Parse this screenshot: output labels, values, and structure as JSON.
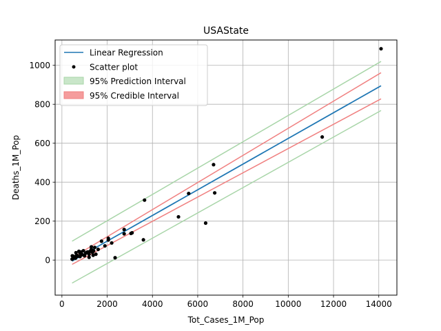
{
  "chart_data": {
    "type": "scatter",
    "title": "USAState",
    "xlabel": "Tot_Cases_1M_Pop",
    "ylabel": "Deaths_1M_Pop",
    "xlim": [
      -300,
      14800
    ],
    "ylim": [
      -180,
      1130
    ],
    "xticks": [
      0,
      2000,
      4000,
      6000,
      8000,
      10000,
      12000,
      14000
    ],
    "yticks": [
      0,
      200,
      400,
      600,
      800,
      1000
    ],
    "grid": true,
    "legend_position": "top-left",
    "legend": {
      "regression": "Linear Regression",
      "scatter": "Scatter plot",
      "prediction": "95% Prediction Interval",
      "credible": "95% Credible Interval"
    },
    "colors": {
      "regression": "#1f77b4",
      "scatter": "#000000",
      "prediction": "#a8d5a8",
      "credible": "#f08080"
    },
    "regression_line": {
      "x": [
        450,
        14100
      ],
      "y": [
        -5,
        895
      ]
    },
    "prediction_upper": {
      "x": [
        450,
        14100
      ],
      "y": [
        97,
        1020
      ]
    },
    "prediction_lower": {
      "x": [
        450,
        14100
      ],
      "y": [
        -118,
        768
      ]
    },
    "credible_upper": {
      "x": [
        450,
        14100
      ],
      "y": [
        12,
        962
      ]
    },
    "credible_lower": {
      "x": [
        450,
        14100
      ],
      "y": [
        -22,
        828
      ]
    },
    "points": [
      [
        14100,
        1085
      ],
      [
        11500,
        632
      ],
      [
        6700,
        490
      ],
      [
        6750,
        345
      ],
      [
        5600,
        342
      ],
      [
        6350,
        190
      ],
      [
        5150,
        222
      ],
      [
        3650,
        308
      ],
      [
        3600,
        104
      ],
      [
        2350,
        12
      ],
      [
        3100,
        140
      ],
      [
        3050,
        137
      ],
      [
        2750,
        157
      ],
      [
        2750,
        135
      ],
      [
        2200,
        88
      ],
      [
        2050,
        112
      ],
      [
        2050,
        103
      ],
      [
        1900,
        73
      ],
      [
        1750,
        97
      ],
      [
        1450,
        65
      ],
      [
        1400,
        48
      ],
      [
        1350,
        40
      ],
      [
        1300,
        68
      ],
      [
        1300,
        55
      ],
      [
        1250,
        45
      ],
      [
        1200,
        30
      ],
      [
        1200,
        14
      ],
      [
        1150,
        42
      ],
      [
        1100,
        40
      ],
      [
        1050,
        35
      ],
      [
        1000,
        22
      ],
      [
        950,
        48
      ],
      [
        900,
        28
      ],
      [
        850,
        42
      ],
      [
        800,
        35
      ],
      [
        800,
        18
      ],
      [
        750,
        45
      ],
      [
        700,
        20
      ],
      [
        650,
        25
      ],
      [
        620,
        38
      ],
      [
        600,
        10
      ],
      [
        550,
        15
      ],
      [
        520,
        12
      ],
      [
        500,
        20
      ],
      [
        480,
        8
      ],
      [
        460,
        22
      ],
      [
        450,
        5
      ],
      [
        1500,
        30
      ],
      [
        1600,
        55
      ],
      [
        1380,
        25
      ]
    ]
  }
}
